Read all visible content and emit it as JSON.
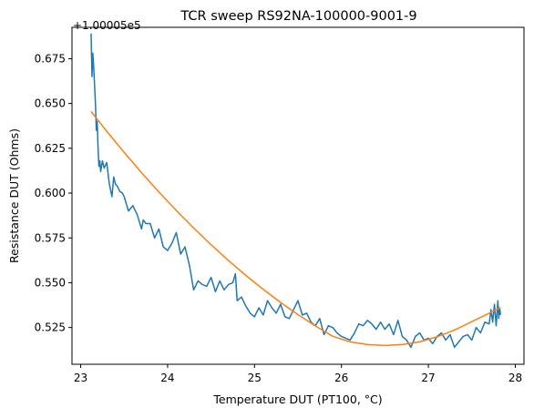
{
  "chart_data": {
    "type": "line",
    "title": "TCR sweep RS92NA-100000-9001-9",
    "xlabel": "Temperature DUT (PT100, °C)",
    "ylabel": "Resistance DUT (Ohms)",
    "y_offset_label": "+1.00005e5",
    "xlim": [
      22.9,
      28.1
    ],
    "ylim": [
      0.5045,
      0.6925
    ],
    "x_ticks": [
      {
        "value": 23,
        "label": "23"
      },
      {
        "value": 24,
        "label": "24"
      },
      {
        "value": 25,
        "label": "25"
      },
      {
        "value": 26,
        "label": "26"
      },
      {
        "value": 27,
        "label": "27"
      },
      {
        "value": 28,
        "label": "28"
      }
    ],
    "y_ticks": [
      {
        "value": 0.525,
        "label": "0.525"
      },
      {
        "value": 0.55,
        "label": "0.550"
      },
      {
        "value": 0.575,
        "label": "0.575"
      },
      {
        "value": 0.6,
        "label": "0.600"
      },
      {
        "value": 0.625,
        "label": "0.625"
      },
      {
        "value": 0.65,
        "label": "0.650"
      },
      {
        "value": 0.675,
        "label": "0.675"
      }
    ],
    "grid": false,
    "series": [
      {
        "color": "#1f77b4",
        "x": [
          23.12,
          23.13,
          23.14,
          23.15,
          23.16,
          23.17,
          23.18,
          23.19,
          23.2,
          23.21,
          23.22,
          23.23,
          23.25,
          23.27,
          23.3,
          23.33,
          23.36,
          23.38,
          23.4,
          23.42,
          23.45,
          23.48,
          23.5,
          23.55,
          23.6,
          23.65,
          23.7,
          23.72,
          23.75,
          23.8,
          23.85,
          23.9,
          23.95,
          24.0,
          24.05,
          24.1,
          24.15,
          24.2,
          24.25,
          24.3,
          24.35,
          24.4,
          24.45,
          24.5,
          24.55,
          24.6,
          24.65,
          24.7,
          24.75,
          24.78,
          24.8,
          24.85,
          24.9,
          24.95,
          25.0,
          25.05,
          25.1,
          25.15,
          25.2,
          25.25,
          25.3,
          25.35,
          25.4,
          25.45,
          25.5,
          25.55,
          25.6,
          25.65,
          25.7,
          25.75,
          25.8,
          25.85,
          25.9,
          25.95,
          26.0,
          26.05,
          26.1,
          26.15,
          26.2,
          26.25,
          26.3,
          26.35,
          26.4,
          26.45,
          26.5,
          26.55,
          26.6,
          26.65,
          26.7,
          26.75,
          26.8,
          26.85,
          26.9,
          26.95,
          27.0,
          27.05,
          27.1,
          27.15,
          27.2,
          27.25,
          27.3,
          27.35,
          27.4,
          27.45,
          27.5,
          27.55,
          27.6,
          27.65,
          27.7,
          27.72,
          27.74,
          27.76,
          27.78,
          27.8,
          27.81,
          27.82,
          27.83
        ],
        "y": [
          0.689,
          0.665,
          0.678,
          0.67,
          0.66,
          0.65,
          0.635,
          0.64,
          0.625,
          0.615,
          0.618,
          0.612,
          0.618,
          0.614,
          0.617,
          0.605,
          0.598,
          0.609,
          0.605,
          0.604,
          0.601,
          0.6,
          0.598,
          0.59,
          0.593,
          0.588,
          0.58,
          0.585,
          0.583,
          0.583,
          0.575,
          0.58,
          0.57,
          0.568,
          0.572,
          0.578,
          0.566,
          0.57,
          0.56,
          0.546,
          0.551,
          0.549,
          0.548,
          0.553,
          0.545,
          0.551,
          0.546,
          0.549,
          0.55,
          0.555,
          0.54,
          0.542,
          0.537,
          0.533,
          0.531,
          0.536,
          0.532,
          0.54,
          0.536,
          0.533,
          0.538,
          0.531,
          0.53,
          0.535,
          0.54,
          0.532,
          0.533,
          0.528,
          0.526,
          0.53,
          0.521,
          0.526,
          0.525,
          0.522,
          0.52,
          0.519,
          0.518,
          0.522,
          0.527,
          0.526,
          0.529,
          0.527,
          0.524,
          0.528,
          0.524,
          0.527,
          0.521,
          0.529,
          0.52,
          0.518,
          0.514,
          0.52,
          0.522,
          0.518,
          0.519,
          0.516,
          0.52,
          0.522,
          0.518,
          0.521,
          0.514,
          0.517,
          0.52,
          0.521,
          0.518,
          0.525,
          0.522,
          0.528,
          0.527,
          0.535,
          0.528,
          0.538,
          0.526,
          0.54,
          0.53,
          0.536,
          0.532
        ]
      },
      {
        "color": "#ff7f0e",
        "x": [
          23.12,
          23.3,
          23.5,
          23.7,
          23.9,
          24.1,
          24.3,
          24.5,
          24.7,
          24.9,
          25.1,
          25.3,
          25.5,
          25.7,
          25.9,
          26.1,
          26.3,
          26.5,
          26.7,
          26.9,
          27.1,
          27.3,
          27.5,
          27.7,
          27.83
        ],
        "y": [
          0.6455,
          0.6345,
          0.6227,
          0.6114,
          0.6006,
          0.5903,
          0.5805,
          0.5712,
          0.5624,
          0.5541,
          0.5463,
          0.539,
          0.5322,
          0.5259,
          0.5201,
          0.517,
          0.5155,
          0.515,
          0.5155,
          0.517,
          0.5198,
          0.5236,
          0.5283,
          0.533,
          0.536
        ]
      }
    ]
  }
}
